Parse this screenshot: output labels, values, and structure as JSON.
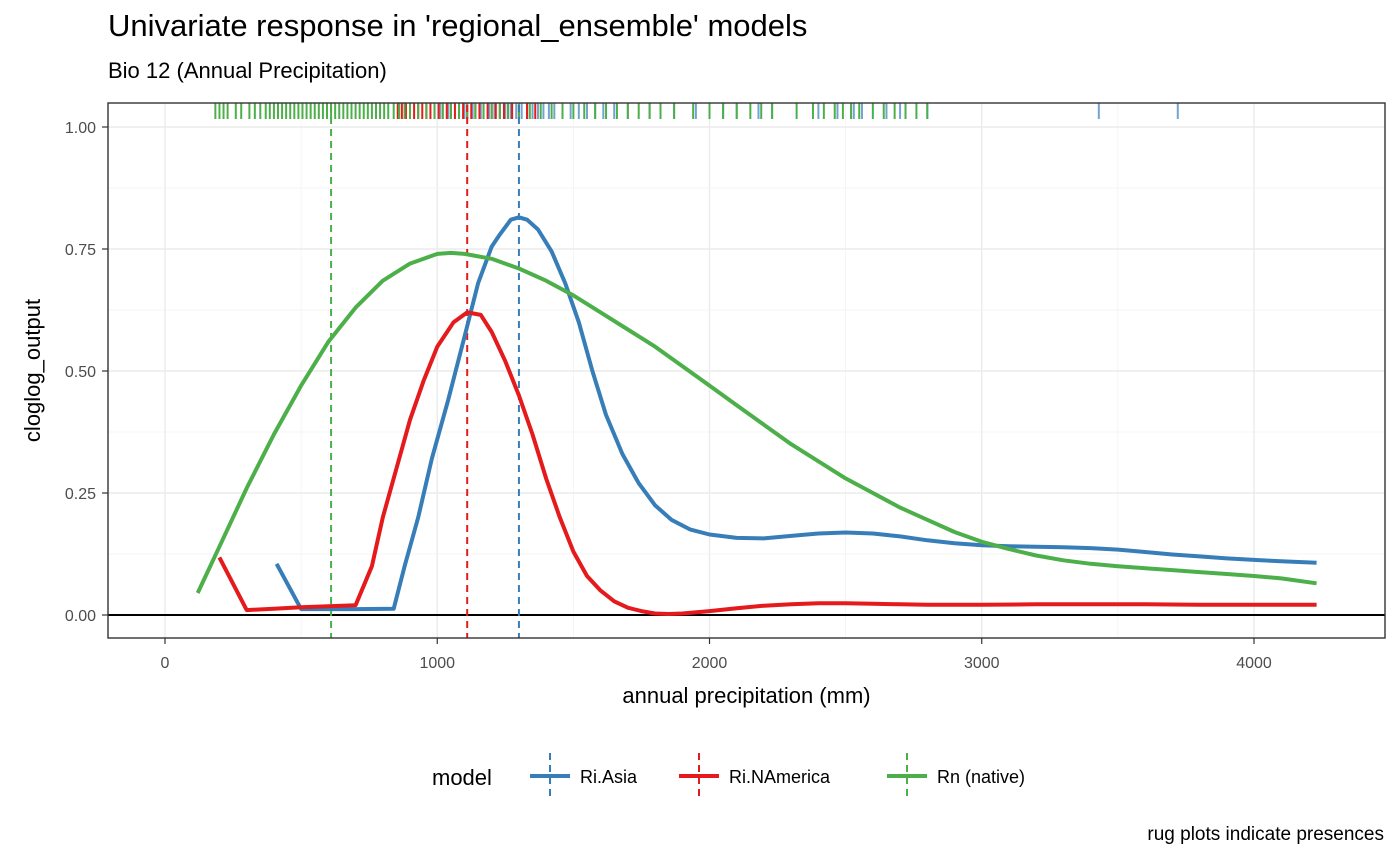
{
  "chart_data": {
    "type": "line",
    "title": "Univariate response in 'regional_ensemble' models",
    "subtitle": "Bio 12 (Annual Precipitation)",
    "xlabel": "annual precipitation (mm)",
    "ylabel": "cloglog_output",
    "caption": "rug plots indicate presences",
    "xlim": [
      -210,
      4420
    ],
    "ylim": [
      -0.05,
      1.05
    ],
    "x_ticks": [
      0,
      1000,
      2000,
      3000,
      4000
    ],
    "y_ticks": [
      0.0,
      0.25,
      0.5,
      0.75,
      1.0
    ],
    "x_tick_labels": [
      "0",
      "1000",
      "2000",
      "3000",
      "4000"
    ],
    "y_tick_labels": [
      "0.00",
      "0.25",
      "0.50",
      "0.75",
      "1.00"
    ],
    "grid": true,
    "hline_y": 0,
    "legend": {
      "title": "model",
      "placement": "bottom"
    },
    "series": [
      {
        "name": "Ri.Asia",
        "color": "#377EB8",
        "mean_line_x": 1300,
        "points": [
          [
            410,
            0.105
          ],
          [
            500,
            0.012
          ],
          [
            600,
            0.012
          ],
          [
            700,
            0.012
          ],
          [
            840,
            0.013
          ],
          [
            880,
            0.1
          ],
          [
            930,
            0.2
          ],
          [
            980,
            0.32
          ],
          [
            1040,
            0.44
          ],
          [
            1100,
            0.57
          ],
          [
            1150,
            0.68
          ],
          [
            1200,
            0.755
          ],
          [
            1230,
            0.78
          ],
          [
            1270,
            0.81
          ],
          [
            1300,
            0.815
          ],
          [
            1330,
            0.81
          ],
          [
            1370,
            0.79
          ],
          [
            1420,
            0.745
          ],
          [
            1470,
            0.68
          ],
          [
            1520,
            0.6
          ],
          [
            1570,
            0.5
          ],
          [
            1620,
            0.41
          ],
          [
            1680,
            0.33
          ],
          [
            1740,
            0.27
          ],
          [
            1800,
            0.225
          ],
          [
            1860,
            0.195
          ],
          [
            1930,
            0.175
          ],
          [
            2000,
            0.165
          ],
          [
            2100,
            0.158
          ],
          [
            2200,
            0.157
          ],
          [
            2300,
            0.162
          ],
          [
            2400,
            0.167
          ],
          [
            2500,
            0.169
          ],
          [
            2600,
            0.167
          ],
          [
            2700,
            0.161
          ],
          [
            2800,
            0.153
          ],
          [
            2900,
            0.147
          ],
          [
            3000,
            0.143
          ],
          [
            3100,
            0.141
          ],
          [
            3200,
            0.14
          ],
          [
            3300,
            0.139
          ],
          [
            3400,
            0.137
          ],
          [
            3500,
            0.134
          ],
          [
            3600,
            0.129
          ],
          [
            3700,
            0.124
          ],
          [
            3800,
            0.12
          ],
          [
            3900,
            0.116
          ],
          [
            4000,
            0.113
          ],
          [
            4100,
            0.11
          ],
          [
            4230,
            0.107
          ]
        ],
        "rug_x": [
          1010,
          1040,
          1080,
          1100,
          1130,
          1160,
          1190,
          1210,
          1230,
          1250,
          1270,
          1290,
          1310,
          1330,
          1350,
          1370,
          1390,
          1410,
          1430,
          1460,
          1490,
          1520,
          1550,
          1580,
          1610,
          1650,
          1700,
          1780,
          1870,
          1950,
          2050,
          2100,
          2180,
          2230,
          2400,
          2470,
          2530,
          2560,
          2650,
          2700,
          2720,
          2800,
          3430,
          3720
        ]
      },
      {
        "name": "Ri.NAmerica",
        "color": "#E41A1C",
        "mean_line_x": 1110,
        "points": [
          [
            200,
            0.118
          ],
          [
            300,
            0.01
          ],
          [
            400,
            0.013
          ],
          [
            500,
            0.016
          ],
          [
            600,
            0.018
          ],
          [
            700,
            0.02
          ],
          [
            760,
            0.1
          ],
          [
            800,
            0.2
          ],
          [
            850,
            0.3
          ],
          [
            900,
            0.4
          ],
          [
            950,
            0.48
          ],
          [
            1000,
            0.55
          ],
          [
            1060,
            0.6
          ],
          [
            1110,
            0.62
          ],
          [
            1160,
            0.615
          ],
          [
            1200,
            0.58
          ],
          [
            1250,
            0.52
          ],
          [
            1300,
            0.45
          ],
          [
            1350,
            0.37
          ],
          [
            1400,
            0.28
          ],
          [
            1450,
            0.2
          ],
          [
            1500,
            0.13
          ],
          [
            1550,
            0.08
          ],
          [
            1600,
            0.05
          ],
          [
            1650,
            0.028
          ],
          [
            1700,
            0.015
          ],
          [
            1750,
            0.008
          ],
          [
            1800,
            0.003
          ],
          [
            1850,
            0.002
          ],
          [
            1900,
            0.003
          ],
          [
            2000,
            0.008
          ],
          [
            2100,
            0.014
          ],
          [
            2200,
            0.019
          ],
          [
            2300,
            0.022
          ],
          [
            2400,
            0.024
          ],
          [
            2500,
            0.024
          ],
          [
            2600,
            0.023
          ],
          [
            2700,
            0.022
          ],
          [
            2800,
            0.021
          ],
          [
            2900,
            0.021
          ],
          [
            3000,
            0.021
          ],
          [
            3200,
            0.022
          ],
          [
            3400,
            0.022
          ],
          [
            3600,
            0.022
          ],
          [
            3800,
            0.021
          ],
          [
            4000,
            0.021
          ],
          [
            4230,
            0.021
          ]
        ],
        "rug_x": [
          855,
          870,
          885,
          900,
          915,
          930,
          945,
          960,
          975,
          990,
          1005,
          1020,
          1035,
          1050,
          1065,
          1080,
          1095,
          1110,
          1125,
          1140,
          1155,
          1170,
          1185,
          1200,
          1215,
          1230,
          1245,
          1260,
          1275,
          1300,
          1330,
          1360
        ]
      },
      {
        "name": "Rn (native)",
        "color": "#4DAF4A",
        "mean_line_x": 610,
        "points": [
          [
            120,
            0.045
          ],
          [
            200,
            0.14
          ],
          [
            300,
            0.26
          ],
          [
            400,
            0.37
          ],
          [
            500,
            0.47
          ],
          [
            600,
            0.56
          ],
          [
            700,
            0.63
          ],
          [
            800,
            0.685
          ],
          [
            900,
            0.72
          ],
          [
            1000,
            0.74
          ],
          [
            1050,
            0.742
          ],
          [
            1100,
            0.74
          ],
          [
            1200,
            0.73
          ],
          [
            1300,
            0.71
          ],
          [
            1400,
            0.685
          ],
          [
            1500,
            0.655
          ],
          [
            1600,
            0.62
          ],
          [
            1700,
            0.585
          ],
          [
            1800,
            0.55
          ],
          [
            1900,
            0.51
          ],
          [
            2000,
            0.47
          ],
          [
            2100,
            0.43
          ],
          [
            2200,
            0.39
          ],
          [
            2300,
            0.35
          ],
          [
            2400,
            0.315
          ],
          [
            2500,
            0.28
          ],
          [
            2600,
            0.25
          ],
          [
            2700,
            0.22
          ],
          [
            2800,
            0.195
          ],
          [
            2900,
            0.17
          ],
          [
            3000,
            0.15
          ],
          [
            3100,
            0.135
          ],
          [
            3200,
            0.122
          ],
          [
            3300,
            0.112
          ],
          [
            3400,
            0.105
          ],
          [
            3500,
            0.1
          ],
          [
            3600,
            0.096
          ],
          [
            3700,
            0.092
          ],
          [
            3800,
            0.088
          ],
          [
            3900,
            0.084
          ],
          [
            4000,
            0.08
          ],
          [
            4100,
            0.075
          ],
          [
            4230,
            0.065
          ]
        ],
        "rug_x": [
          185,
          200,
          215,
          230,
          260,
          280,
          310,
          330,
          350,
          370,
          385,
          400,
          415,
          430,
          445,
          460,
          475,
          490,
          505,
          520,
          535,
          550,
          565,
          580,
          595,
          610,
          625,
          640,
          655,
          670,
          685,
          700,
          715,
          730,
          745,
          760,
          775,
          790,
          805,
          820,
          840,
          860,
          880,
          900,
          930,
          960,
          990,
          1020,
          1050,
          1080,
          1110,
          1140,
          1170,
          1200,
          1230,
          1260,
          1300,
          1340,
          1380,
          1420,
          1460,
          1500,
          1540,
          1580,
          1620,
          1660,
          1700,
          1740,
          1780,
          1820,
          1870,
          1940,
          2000,
          2050,
          2100,
          2150,
          2190,
          2230,
          2320,
          2380,
          2420,
          2460,
          2490,
          2520,
          2550,
          2600,
          2640,
          2680,
          2720,
          2760,
          2800
        ]
      }
    ]
  }
}
